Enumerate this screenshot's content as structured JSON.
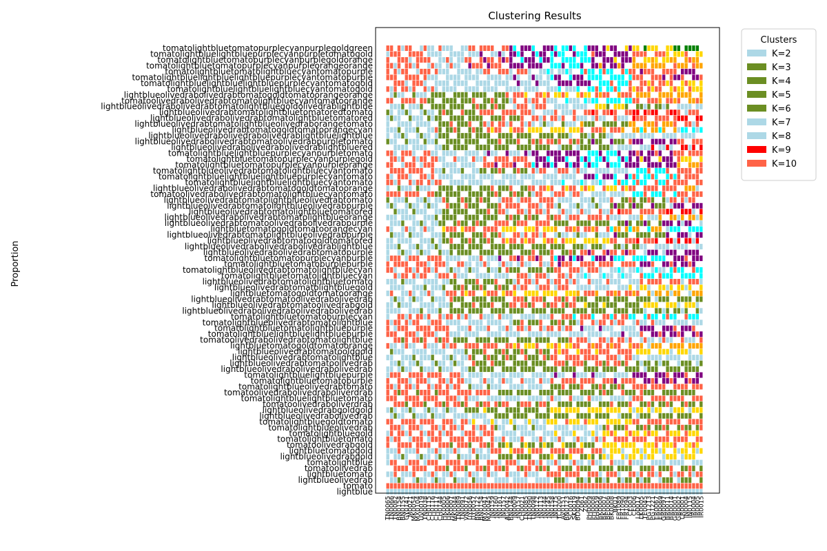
{
  "chart_data": {
    "type": "bar",
    "title": "Clustering Results",
    "ylabel": "Proportion",
    "xlabel": "",
    "legend": {
      "title": "Clusters",
      "placement": "upper-right-outside",
      "entries": [
        {
          "label": "K=2",
          "color": "#add8e6"
        },
        {
          "label": "K=3",
          "color": "#6b8e23"
        },
        {
          "label": "K=4",
          "color": "#6b8e23"
        },
        {
          "label": "K=5",
          "color": "#6b8e23"
        },
        {
          "label": "K=6",
          "color": "#6b8e23"
        },
        {
          "label": "K=7",
          "color": "#add8e6"
        },
        {
          "label": "K=8",
          "color": "#add8e6"
        },
        {
          "label": "K=9",
          "color": "#ff0000"
        },
        {
          "label": "K=10",
          "color": "#ff6347"
        }
      ]
    },
    "palette": {
      "lightblue": "#add8e6",
      "olivedrab": "#6b8e23",
      "tomato": "#ff6347",
      "gold": "#ffd700",
      "orange": "#ffa500",
      "purple": "#800080",
      "cyan": "#00ffff",
      "red": "#ff0000",
      "green": "#008000",
      "pink": "#ffc0cb"
    },
    "samples": [
      "TN0065",
      "TN0066",
      "TN0082",
      "BN0154",
      "BN0155",
      "GY0141",
      "M0021",
      "MK0054",
      "MX0104",
      "UV0019",
      "TN0038",
      "CH0115",
      "CH0116",
      "CH0117",
      "CH0144",
      "HK0005",
      "HK0006",
      "HK0007",
      "MK0044",
      "TN0089",
      "TN0091",
      "VN0072",
      "UY0056",
      "UY0057",
      "BN0122",
      "BN0154",
      "MX0041",
      "MX0045",
      "JN0159",
      "JN0160",
      "IN0161",
      "JN0157",
      "AG0042",
      "BN0144",
      "JN0009",
      "IN0157",
      "CH0021",
      "TN0085",
      "TN0090",
      "TN0098",
      "JN0122",
      "JN0113",
      "JN0144",
      "JN0145",
      "IN0158",
      "JN0175",
      "TC0200",
      "AV0151",
      "BN0123",
      "SC0016",
      "SK0019",
      "BD0094",
      "Z061",
      "Z062",
      "PH0009",
      "PH0008",
      "PH0059",
      "BK0006",
      "BK0007",
      "BE0006",
      "BK0008",
      "BKU1",
      "FR1089",
      "FR1090",
      "FR1094",
      "CE003",
      "CE006",
      "Lo0017",
      "LK0005",
      "TE0045",
      "PG1213",
      "PG1221",
      "ER0067",
      "ER0069",
      "GR0097",
      "BR0011",
      "BR0014",
      "GB0001",
      "GB0002",
      "LR0001",
      "IN0004",
      "IN0115",
      "IR0004",
      "IR0005",
      "IR0015"
    ],
    "row_labels_bottom_to_top": [
      "lightblue",
      "tomato",
      "lightblueolivedrab",
      "lightbluetomato",
      "tomatoolivedrab",
      "tomatolightblue",
      "lightblueolivedrabgold",
      "lightbluetomatogold",
      "tomatoolivedrabgold",
      "tomatolightbluetomato",
      "tomatolightbluegold",
      "tomatolightblueolivedrab",
      "tomatolightbluegoldtomato",
      "lightblueolivedrabolivedrab",
      "lightblueolivedrabgoldgold",
      "tomatoolivedraboliverdrab",
      "tomatolightbluelightbluetomato",
      "tomatoolivedrabolivedraboliverdrab",
      "tomatolightblueolivedrabtomato",
      "tomatolightbluetomatopurple",
      "tomatolightbluelightbluepurple",
      "lightblueolivedrabolivedrabolivedrab",
      "lightblueolivedrabtomatoolivedrab",
      "lightblueolivedrabtomatolightblue",
      "lightblueolivedrabtomatooldgold",
      "lightbluetomatogoldtomatoorange",
      "tomatoolivedrabolivedrabtomatolightblue",
      "tomatolightbluelightbluelightbluepurple",
      "tomatolightbluetomatolightbluepurple",
      "tomatolightblueolivedrabtomatolightblue",
      "tomatolightbluetomatoburplecyan",
      "lightblueolivedrabolivedrabolivedrabolivedrab",
      "lightblueolivedrabtomatoolivedrabgold",
      "lightblueolivedrabtomatoolivedrabolivedrab",
      "lightbluetomatogoldtomatoorange",
      "lightblueolivedrabtomatolightbluegold",
      "lightblueolivedrabtomatolightbluetomato",
      "tomatolightbluetomatolightbluecyan",
      "tomatolightblueolivedrabtomatolightbluecyan",
      "tomatolightbluetomatoburplepurple",
      "tomatolightbluetomatopurplecyanpurple",
      "lightblueolivedrabolivedrabtomatopurple",
      "lightblueolivedrabolivedrabolivedrablightblue",
      "lightblueolivedrabtomatogoldtomatored",
      "lightblueolivedrabtomatolightblueolivedrabpurple",
      "lightbluetomatogoldtomatoorangecyan",
      "lightblueolivedrabtomatoolivedrabolivedrabpurple",
      "lightblueolivedrabolivedrabtomatolightblueorange",
      "lightblueolivedrabtomatolightbluetomatored",
      "lightblueolivedrabtomatolightblueolivedrabpurple",
      "lightblueolivedrabtomatolightblueolivedrabtomato",
      "tomatoolivedrabolivedrabtomatolightbluecyantomato",
      "lightblueolivedrabolivedrabtomatogoldtomatoorange",
      "tomatolightbluelightbluelightbluecyantomato",
      "tomatolightbluelightbluelightbluepurplecyantomato",
      "tomatolightblueolivedrabtomatolightbluecyantomato",
      "tomatolightbluetomatopurplecyanpurpleorange",
      "tomatolightbluetomatopurplecyanpurplegold",
      "tomatolightbluelightbluepurplecyanpurpletomato",
      "lightblueolivedrabolivedrabolivedrablightbluered",
      "lightblueolivedrabolivedrabtomatoolivedrabpurpletomato",
      "lightblueolivedrabolivedrabolivedrablightbluelightblue",
      "lightblueolivedrabtomatogoldtomatoorangecyan",
      "lightblueolivedrabtomatolightblueolivedraborangetomato",
      "lightblueolivedrabolivedrabtomatolightbluetomatored",
      "lightblueolivedrabtomatolightbluetomatoredtomato",
      "lightblueolivedrabolivedrabtomatolightbluegoldolivedrablightblue",
      "tomatoolivedrabolivedrabtomatolightbluecyantomatoorange",
      "lightblueolivedrabolivedrabtomatogoldtomatoorangeorange",
      "tomatolightbluelightbluelightbluecyantomatogold",
      "tomatolightbluelightbluelightbluepurplecyantomatogold",
      "tomatolightbluelightbluelightbluepurplecyantomatopurple",
      "tomatolightbluetomatolightbluecyantomatopurple",
      "tomatolightbluetomatopurplecyanpurpleorangeorange",
      "tomatolightbluetomatopurplecyanpurplegoldorange",
      "tomatolightbluelightbluepurplecyanpurpletomatogold",
      "tomatolightbluetomatopurplecyanpurplegoldgreen"
    ],
    "ylim": [
      0,
      1
    ],
    "grid": false
  }
}
